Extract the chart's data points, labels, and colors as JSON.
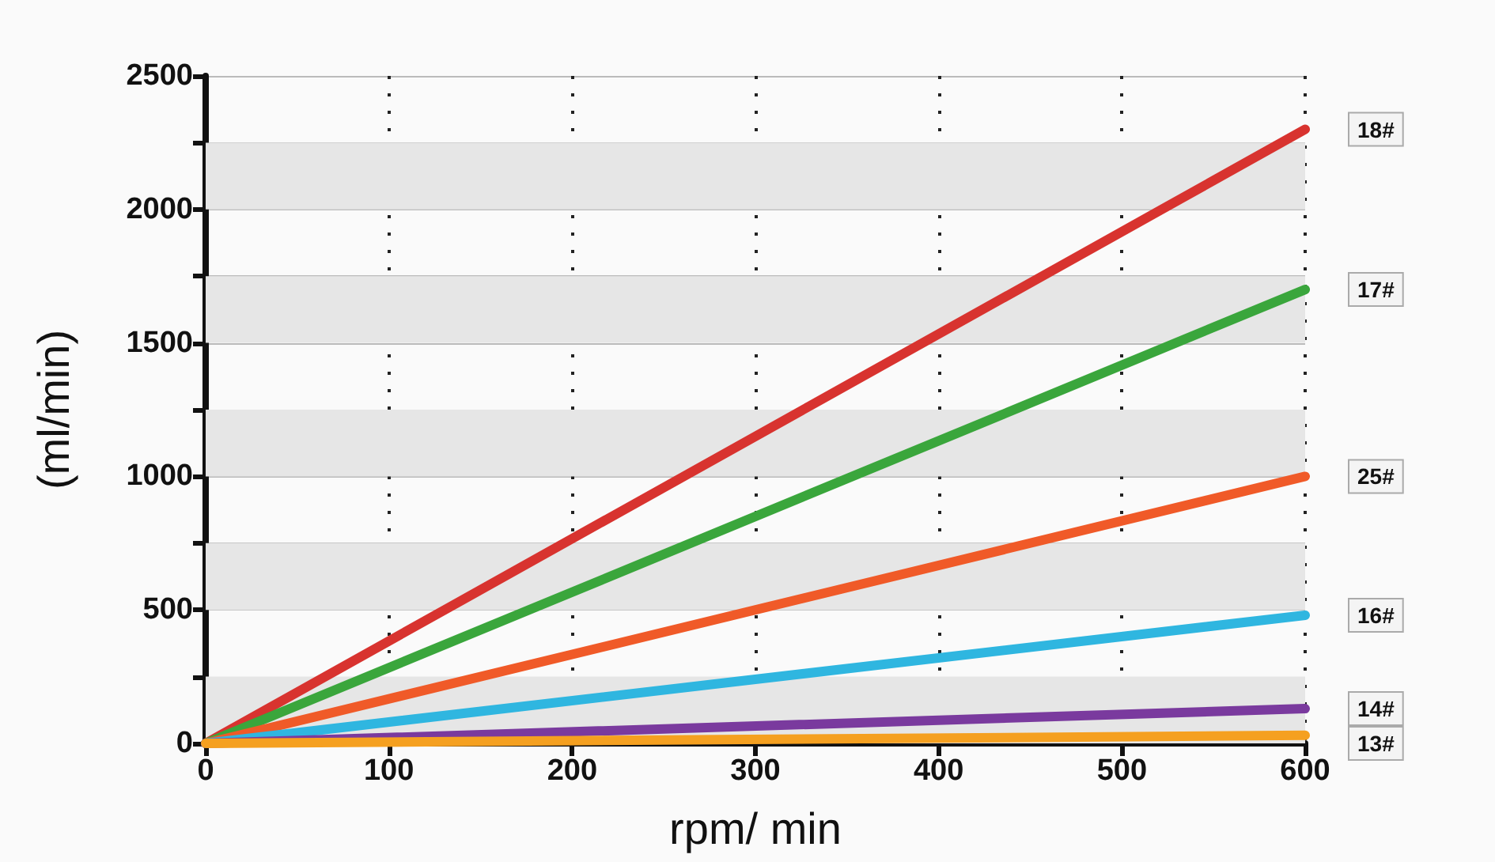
{
  "chart_data": {
    "type": "line",
    "xlabel": "rpm/ min",
    "ylabel": "(ml/min)",
    "x": [
      0,
      600
    ],
    "series": [
      {
        "name": "18#",
        "color": "#d8332f",
        "values": [
          0,
          2300
        ]
      },
      {
        "name": "17#",
        "color": "#3aa63c",
        "values": [
          0,
          1700
        ]
      },
      {
        "name": "25#",
        "color": "#f05a28",
        "values": [
          0,
          1000
        ]
      },
      {
        "name": "16#",
        "color": "#2fb6e0",
        "values": [
          0,
          480
        ]
      },
      {
        "name": "14#",
        "color": "#7a3a9e",
        "values": [
          0,
          130
        ]
      },
      {
        "name": "13#",
        "color": "#f5a020",
        "values": [
          0,
          30
        ]
      }
    ],
    "xlim": [
      0,
      600
    ],
    "xticks": [
      0,
      100,
      200,
      300,
      400,
      500,
      600
    ],
    "ylim": [
      0,
      2500
    ],
    "yticks": [
      0,
      {
        "value": 250,
        "label": null
      },
      500,
      {
        "value": 750,
        "label": null
      },
      1000,
      {
        "value": 1250,
        "label": null
      },
      1500,
      {
        "value": 1750,
        "label": null
      },
      2000,
      {
        "value": 2250,
        "label": null
      },
      2500
    ],
    "bands": [
      {
        "axis": "y",
        "from": 0,
        "to": 250,
        "color": "#e6e6e6"
      },
      {
        "axis": "y",
        "from": 500,
        "to": 750,
        "color": "#e6e6e6"
      },
      {
        "axis": "y",
        "from": 1000,
        "to": 1250,
        "color": "#e6e6e6"
      },
      {
        "axis": "y",
        "from": 1500,
        "to": 1750,
        "color": "#e6e6e6"
      },
      {
        "axis": "y",
        "from": 2000,
        "to": 2250,
        "color": "#e6e6e6"
      }
    ],
    "grid": true,
    "marker": "none",
    "line_style": "solid"
  }
}
